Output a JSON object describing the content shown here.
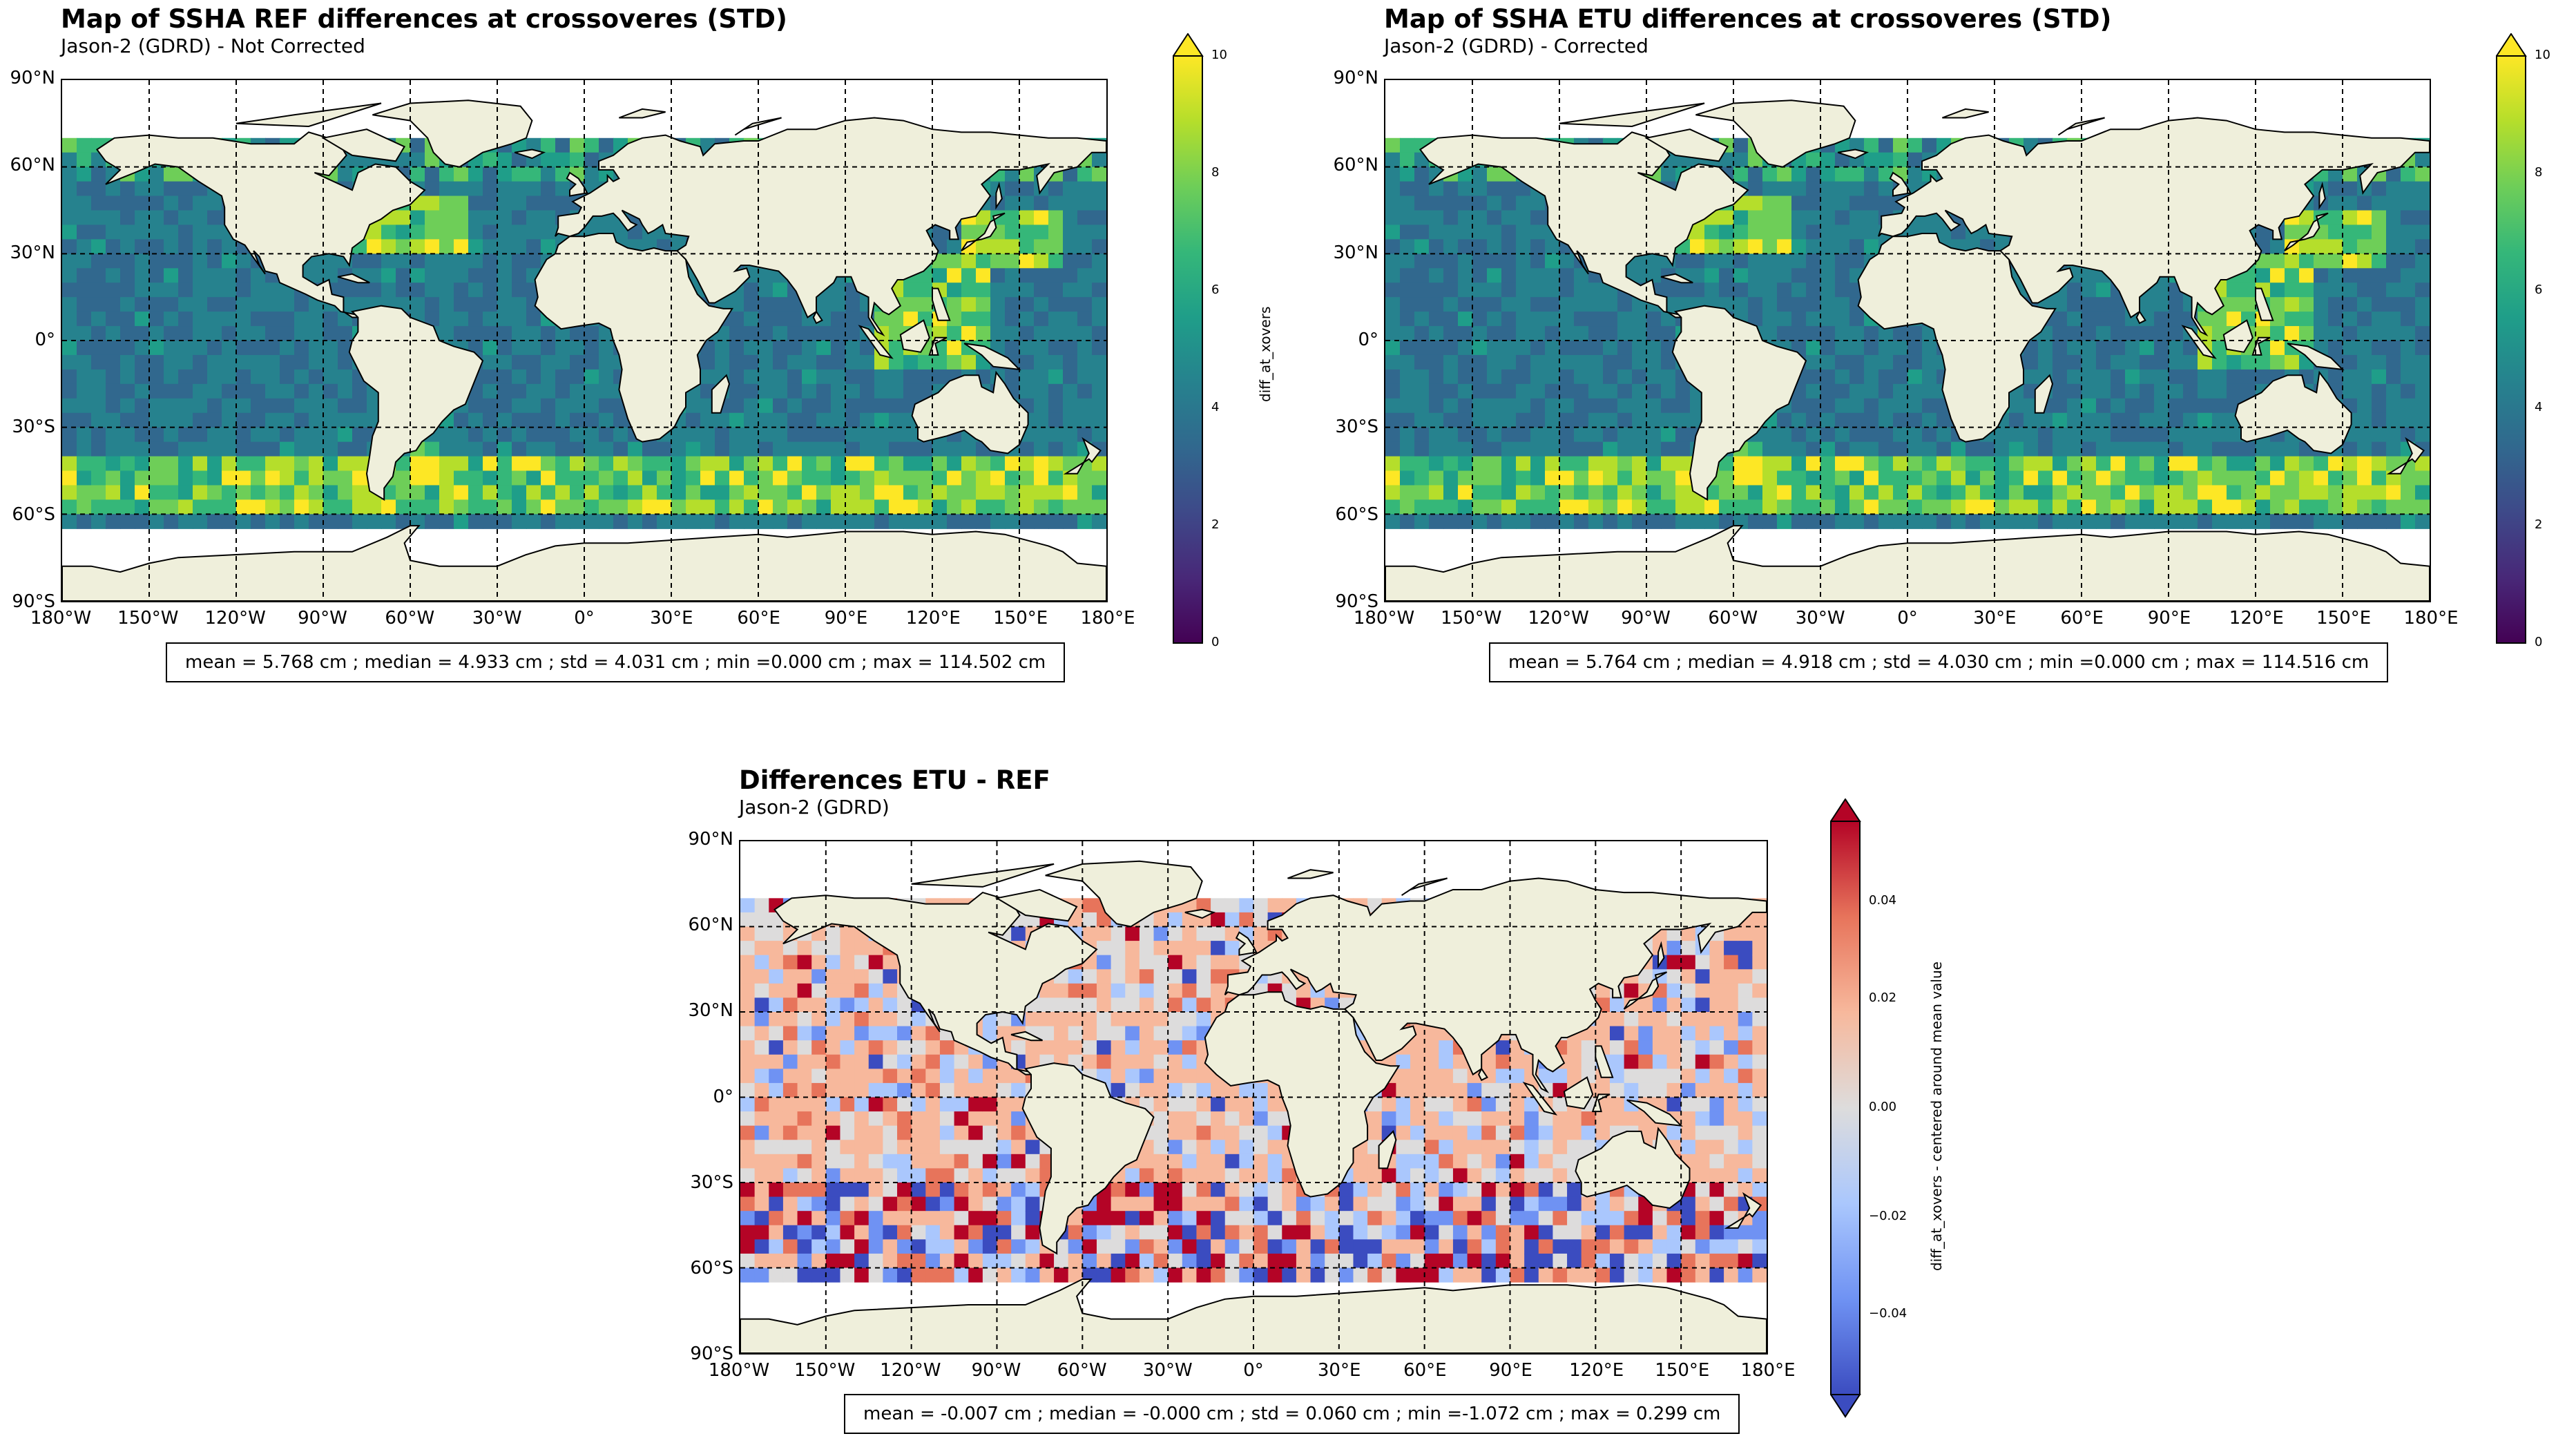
{
  "colors": {
    "land": "#efefdb",
    "ocean_empty": "#ffffff",
    "viridis": [
      "#440154",
      "#482878",
      "#3e4989",
      "#31688e",
      "#26828e",
      "#1f9e89",
      "#35b779",
      "#6ece58",
      "#b5de2b",
      "#fde725"
    ],
    "coolwarm": [
      "#3b4cc0",
      "#6f92f3",
      "#aac7fd",
      "#dddcdc",
      "#f7b89c",
      "#e7745b",
      "#b40426"
    ]
  },
  "panels": [
    {
      "title": "Map of SSHA REF differences at crossoveres (STD)",
      "subtitle": "Jason-2 (GDRD) - Not Corrected",
      "stats": "mean = 5.768 cm ; median = 4.933 cm ; std = 4.031 cm ; min =0.000 cm ; max = 114.502 cm",
      "colorbar_label": "diff_at_xovers",
      "colorbar_ticks": [
        "10",
        "8",
        "6",
        "4",
        "2",
        "0"
      ]
    },
    {
      "title": "Map of SSHA ETU differences at crossoveres (STD)",
      "subtitle": "Jason-2 (GDRD) - Corrected",
      "stats": "mean = 5.764 cm ; median = 4.918 cm ; std = 4.030 cm ; min =0.000 cm ; max = 114.516 cm",
      "colorbar_label": "diff_at_xovers",
      "colorbar_ticks": [
        "10",
        "8",
        "6",
        "4",
        "2",
        "0"
      ]
    },
    {
      "title": "Differences ETU - REF",
      "subtitle": "Jason-2 (GDRD)",
      "stats": "mean = -0.007 cm ; median = -0.000 cm ; std = 0.060 cm ; min =-1.072 cm ; max = 0.299 cm",
      "colorbar_label": "diff_at_xovers - centered around mean value",
      "colorbar_ticks": [
        "0.04",
        "0.02",
        "0.00",
        "−0.02",
        "−0.04"
      ]
    }
  ],
  "axes": {
    "lat_labels": [
      "90°N",
      "60°N",
      "30°N",
      "0°",
      "30°S",
      "60°S",
      "90°S"
    ],
    "lon_labels": [
      "180°W",
      "150°W",
      "120°W",
      "90°W",
      "60°W",
      "30°W",
      "0°",
      "30°E",
      "60°E",
      "90°E",
      "120°E",
      "150°E",
      "180°E"
    ]
  }
}
